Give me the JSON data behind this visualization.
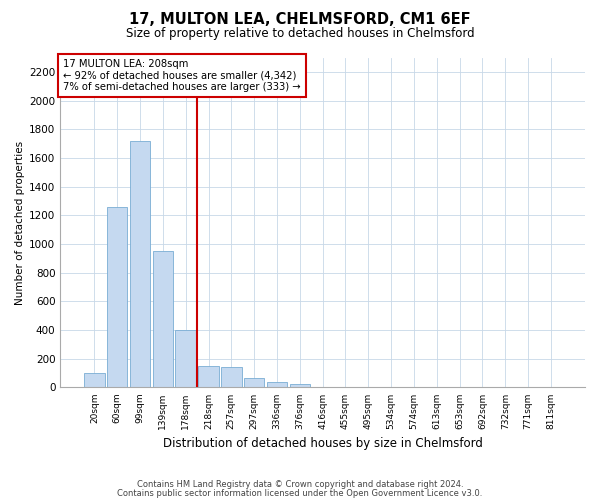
{
  "title": "17, MULTON LEA, CHELMSFORD, CM1 6EF",
  "subtitle": "Size of property relative to detached houses in Chelmsford",
  "xlabel": "Distribution of detached houses by size in Chelmsford",
  "ylabel": "Number of detached properties",
  "footnote1": "Contains HM Land Registry data © Crown copyright and database right 2024.",
  "footnote2": "Contains public sector information licensed under the Open Government Licence v3.0.",
  "categories": [
    "20sqm",
    "60sqm",
    "99sqm",
    "139sqm",
    "178sqm",
    "218sqm",
    "257sqm",
    "297sqm",
    "336sqm",
    "376sqm",
    "416sqm",
    "455sqm",
    "495sqm",
    "534sqm",
    "574sqm",
    "613sqm",
    "653sqm",
    "692sqm",
    "732sqm",
    "771sqm",
    "811sqm"
  ],
  "values": [
    100,
    1260,
    1720,
    950,
    400,
    150,
    145,
    65,
    35,
    25,
    0,
    0,
    0,
    0,
    0,
    0,
    0,
    0,
    0,
    0,
    0
  ],
  "bar_color": "#c5d9f0",
  "bar_edge_color": "#7aadd4",
  "vline_x": 4.5,
  "vline_color": "#cc0000",
  "annotation_line1": "17 MULTON LEA: 208sqm",
  "annotation_line2": "← 92% of detached houses are smaller (4,342)",
  "annotation_line3": "7% of semi-detached houses are larger (333) →",
  "annotation_box_color": "#cc0000",
  "ylim": [
    0,
    2300
  ],
  "yticks": [
    0,
    200,
    400,
    600,
    800,
    1000,
    1200,
    1400,
    1600,
    1800,
    2000,
    2200
  ],
  "background_color": "#ffffff",
  "grid_color": "#c8d8e8"
}
